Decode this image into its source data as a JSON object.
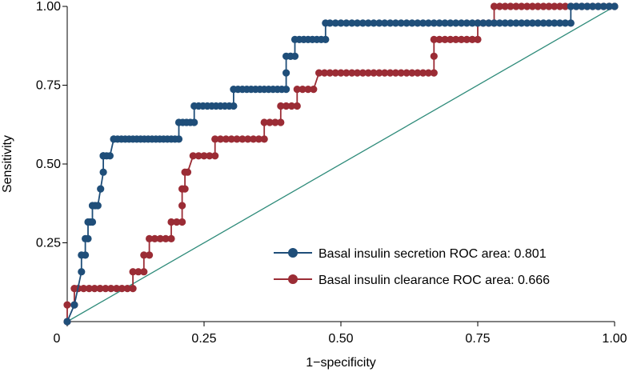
{
  "chart_data": {
    "type": "line",
    "title": "",
    "xlabel": "1−specificity",
    "ylabel": "Sensitivity",
    "xlim": [
      0,
      1
    ],
    "ylim": [
      0,
      1
    ],
    "x_ticks": [
      0,
      0.25,
      0.5,
      0.75,
      1.0
    ],
    "x_tick_labels": [
      "0",
      "0.25",
      "0.50",
      "0.75",
      "1.00"
    ],
    "y_ticks": [
      0.25,
      0.5,
      0.75,
      1.0
    ],
    "y_tick_labels": [
      "0.25",
      "0.50",
      "0.75",
      "1.00"
    ],
    "grid": false,
    "legend_position": "bottom-right",
    "colors": {
      "secretion": "#1f4e79",
      "clearance": "#9b2c35",
      "reference": "#2e8b7a"
    },
    "series": [
      {
        "name": "Basal insulin secretion ROC area: 0.801",
        "key": "secretion",
        "x": [
          0,
          0.013,
          0.026,
          0.026,
          0.033,
          0.033,
          0.038,
          0.038,
          0.042,
          0.046,
          0.046,
          0.051,
          0.056,
          0.061,
          0.066,
          0.066,
          0.066,
          0.066,
          0.072,
          0.078,
          0.085,
          0.085,
          0.092,
          0.099,
          0.106,
          0.113,
          0.12,
          0.127,
          0.134,
          0.141,
          0.148,
          0.155,
          0.162,
          0.169,
          0.176,
          0.183,
          0.19,
          0.197,
          0.204,
          0.204,
          0.211,
          0.218,
          0.225,
          0.232,
          0.232,
          0.24,
          0.248,
          0.256,
          0.264,
          0.272,
          0.28,
          0.288,
          0.296,
          0.304,
          0.304,
          0.312,
          0.32,
          0.328,
          0.336,
          0.344,
          0.352,
          0.36,
          0.368,
          0.376,
          0.384,
          0.392,
          0.4,
          0.4,
          0.4,
          0.408,
          0.408,
          0.416,
          0.416,
          0.424,
          0.432,
          0.44,
          0.448,
          0.456,
          0.464,
          0.472,
          0.472,
          0.48,
          0.49,
          0.5,
          0.51,
          0.52,
          0.53,
          0.54,
          0.55,
          0.56,
          0.57,
          0.58,
          0.59,
          0.6,
          0.61,
          0.62,
          0.63,
          0.64,
          0.65,
          0.66,
          0.67,
          0.68,
          0.69,
          0.7,
          0.71,
          0.72,
          0.73,
          0.74,
          0.75,
          0.76,
          0.77,
          0.78,
          0.79,
          0.8,
          0.81,
          0.82,
          0.83,
          0.84,
          0.85,
          0.86,
          0.87,
          0.88,
          0.89,
          0.9,
          0.91,
          0.92,
          0.92,
          0.93,
          0.94,
          0.95,
          0.96,
          0.97,
          0.98,
          0.99,
          1.0
        ],
        "y": [
          0,
          0.053,
          0.158,
          0.211,
          0.211,
          0.263,
          0.263,
          0.316,
          0.316,
          0.316,
          0.368,
          0.368,
          0.368,
          0.421,
          0.474,
          0.526,
          0.526,
          0.526,
          0.526,
          0.526,
          0.579,
          0.579,
          0.579,
          0.579,
          0.579,
          0.579,
          0.579,
          0.579,
          0.579,
          0.579,
          0.579,
          0.579,
          0.579,
          0.579,
          0.579,
          0.579,
          0.579,
          0.579,
          0.579,
          0.632,
          0.632,
          0.632,
          0.632,
          0.632,
          0.684,
          0.684,
          0.684,
          0.684,
          0.684,
          0.684,
          0.684,
          0.684,
          0.684,
          0.684,
          0.737,
          0.737,
          0.737,
          0.737,
          0.737,
          0.737,
          0.737,
          0.737,
          0.737,
          0.737,
          0.737,
          0.737,
          0.737,
          0.789,
          0.842,
          0.842,
          0.842,
          0.842,
          0.895,
          0.895,
          0.895,
          0.895,
          0.895,
          0.895,
          0.895,
          0.895,
          0.947,
          0.947,
          0.947,
          0.947,
          0.947,
          0.947,
          0.947,
          0.947,
          0.947,
          0.947,
          0.947,
          0.947,
          0.947,
          0.947,
          0.947,
          0.947,
          0.947,
          0.947,
          0.947,
          0.947,
          0.947,
          0.947,
          0.947,
          0.947,
          0.947,
          0.947,
          0.947,
          0.947,
          0.947,
          0.947,
          0.947,
          0.947,
          0.947,
          0.947,
          0.947,
          0.947,
          0.947,
          0.947,
          0.947,
          0.947,
          0.947,
          0.947,
          0.947,
          0.947,
          0.947,
          0.947,
          1.0,
          1.0,
          1.0,
          1.0,
          1.0,
          1.0,
          1.0,
          1.0,
          1.0
        ]
      },
      {
        "name": "Basal insulin clearance ROC area: 0.666",
        "key": "clearance",
        "x": [
          0,
          0,
          0.013,
          0.013,
          0.02,
          0.03,
          0.04,
          0.05,
          0.06,
          0.07,
          0.08,
          0.09,
          0.1,
          0.11,
          0.12,
          0.12,
          0.13,
          0.14,
          0.14,
          0.15,
          0.15,
          0.16,
          0.17,
          0.18,
          0.19,
          0.19,
          0.2,
          0.21,
          0.21,
          0.21,
          0.215,
          0.215,
          0.22,
          0.23,
          0.24,
          0.25,
          0.26,
          0.27,
          0.27,
          0.28,
          0.29,
          0.3,
          0.31,
          0.32,
          0.33,
          0.34,
          0.35,
          0.36,
          0.36,
          0.37,
          0.38,
          0.39,
          0.39,
          0.4,
          0.41,
          0.42,
          0.42,
          0.43,
          0.44,
          0.45,
          0.46,
          0.47,
          0.48,
          0.49,
          0.5,
          0.51,
          0.52,
          0.53,
          0.54,
          0.55,
          0.56,
          0.57,
          0.58,
          0.59,
          0.6,
          0.61,
          0.62,
          0.63,
          0.64,
          0.65,
          0.66,
          0.67,
          0.67,
          0.67,
          0.68,
          0.69,
          0.7,
          0.71,
          0.72,
          0.73,
          0.74,
          0.75,
          0.75,
          0.76,
          0.77,
          0.78,
          0.78,
          0.79,
          0.8,
          0.81,
          0.82,
          0.83,
          0.84,
          0.85,
          0.86,
          0.87,
          0.88,
          0.89,
          0.9,
          0.91,
          0.92,
          0.93,
          0.94,
          0.95,
          0.96,
          0.97,
          0.98,
          0.99,
          1.0
        ],
        "y": [
          0,
          0.053,
          0.053,
          0.105,
          0.105,
          0.105,
          0.105,
          0.105,
          0.105,
          0.105,
          0.105,
          0.105,
          0.105,
          0.105,
          0.105,
          0.158,
          0.158,
          0.158,
          0.211,
          0.211,
          0.263,
          0.263,
          0.263,
          0.263,
          0.263,
          0.316,
          0.316,
          0.316,
          0.368,
          0.421,
          0.421,
          0.474,
          0.474,
          0.526,
          0.526,
          0.526,
          0.526,
          0.526,
          0.579,
          0.579,
          0.579,
          0.579,
          0.579,
          0.579,
          0.579,
          0.579,
          0.579,
          0.579,
          0.632,
          0.632,
          0.632,
          0.632,
          0.684,
          0.684,
          0.684,
          0.684,
          0.737,
          0.737,
          0.737,
          0.737,
          0.789,
          0.789,
          0.789,
          0.789,
          0.789,
          0.789,
          0.789,
          0.789,
          0.789,
          0.789,
          0.789,
          0.789,
          0.789,
          0.789,
          0.789,
          0.789,
          0.789,
          0.789,
          0.789,
          0.789,
          0.789,
          0.789,
          0.842,
          0.895,
          0.895,
          0.895,
          0.895,
          0.895,
          0.895,
          0.895,
          0.895,
          0.895,
          0.947,
          0.947,
          0.947,
          0.947,
          1.0,
          1.0,
          1.0,
          1.0,
          1.0,
          1.0,
          1.0,
          1.0,
          1.0,
          1.0,
          1.0,
          1.0,
          1.0,
          1.0,
          1.0,
          1.0,
          1.0,
          1.0,
          1.0,
          1.0,
          1.0,
          1.0,
          1.0
        ]
      }
    ],
    "reference_line": {
      "x": [
        0,
        1
      ],
      "y": [
        0,
        1
      ]
    }
  }
}
